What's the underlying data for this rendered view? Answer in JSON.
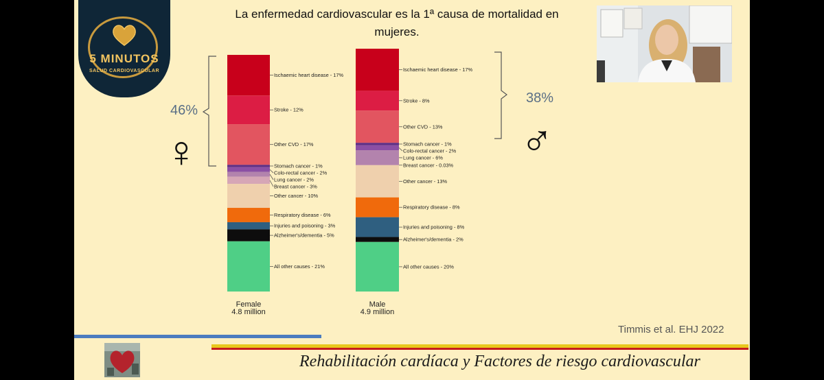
{
  "slide": {
    "title_line1": "La enfermedad cardiovascular es la 1ª  causa de mortalidad en",
    "title_line2": "mujeres.",
    "citation": "Timmis et al. EHJ 2022",
    "footer_title": "Rehabilitación cardíaca y Factores de riesgo cardiovascular"
  },
  "logo": {
    "title": "5 MINUTOS",
    "subtitle": "SALUD CARDIOVASCULAR"
  },
  "annotations": {
    "female_cvd_total": "46%",
    "male_cvd_total": "38%",
    "female_symbol": "♀",
    "male_symbol": "♂"
  },
  "chart_data": {
    "type": "stacked-bar",
    "categories": [
      "Female",
      "Male"
    ],
    "subtitles": [
      "4.8 million",
      "4.9 million"
    ],
    "series": [
      {
        "name": "Ischaemic heart disease",
        "color": "#c8001b",
        "values": [
          17,
          17
        ],
        "labels": [
          "Ischaemic heart disease - 17%",
          "Ischaemic heart disease - 17%"
        ]
      },
      {
        "name": "Stroke",
        "color": "#dc1d44",
        "values": [
          12,
          8
        ],
        "labels": [
          "Stroke - 12%",
          "Stroke - 8%"
        ]
      },
      {
        "name": "Other CVD",
        "color": "#e25560",
        "values": [
          17,
          13
        ],
        "labels": [
          "Other CVD - 17%",
          "Other CVD - 13%"
        ]
      },
      {
        "name": "Stomach cancer",
        "color": "#5f2e86",
        "values": [
          1,
          1
        ],
        "labels": [
          "Stomach cancer - 1%",
          "Stomach cancer - 1%"
        ]
      },
      {
        "name": "Colo-rectal cancer",
        "color": "#8b4fa4",
        "values": [
          2,
          2
        ],
        "labels": [
          "Colo-rectal cancer - 2%",
          "Colo-rectal cancer - 2%"
        ]
      },
      {
        "name": "Lung cancer",
        "color": "#b383ad",
        "values": [
          2,
          6
        ],
        "labels": [
          "Lung cancer - 2%",
          "Lung cancer - 6%"
        ]
      },
      {
        "name": "Breast cancer",
        "color": "#d6a6b6",
        "values": [
          3,
          0.03
        ],
        "labels": [
          "Breast cancer - 3%",
          "Breast cancer - 0.03%"
        ]
      },
      {
        "name": "Other cancer",
        "color": "#efd0ad",
        "values": [
          10,
          13
        ],
        "labels": [
          "Other cancer - 10%",
          "Other cancer - 13%"
        ]
      },
      {
        "name": "Respiratory disease",
        "color": "#f06a0c",
        "values": [
          6,
          8
        ],
        "labels": [
          "Respiratory disease - 6%",
          "Respiratory disease - 8%"
        ]
      },
      {
        "name": "Injuries and poisoning",
        "color": "#2f5f80",
        "values": [
          3,
          8
        ],
        "labels": [
          "Injuries and poisoning - 3%",
          "Injuries and poisoning - 8%"
        ]
      },
      {
        "name": "Alzheimer's/dementia",
        "color": "#0d0d0d",
        "values": [
          5,
          2
        ],
        "labels": [
          "Alzheimer's/dementia - 5%",
          "Alzheimer's/dementia - 2%"
        ]
      },
      {
        "name": "All other causes",
        "color": "#4fcf86",
        "values": [
          21,
          20
        ],
        "labels": [
          "All other causes - 21%",
          "All other causes - 20%"
        ]
      }
    ]
  }
}
